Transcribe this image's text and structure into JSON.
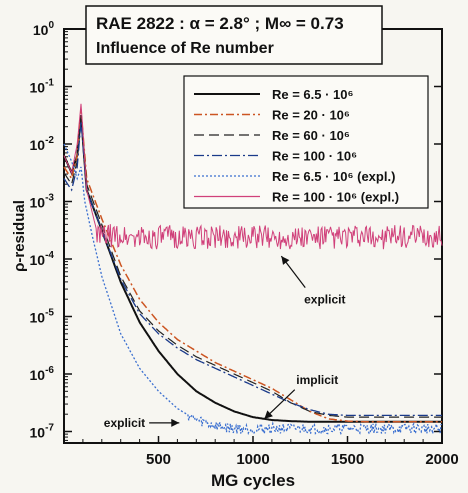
{
  "chart_data": {
    "type": "line",
    "title": "RAE 2822 : α = 2.8° ; M∞ = 0.73",
    "subtitle": "Influence of Re number",
    "xlabel": "MG cycles",
    "ylabel": "ρ-residual",
    "xlim": [
      0,
      2000
    ],
    "ylim_log10": [
      -7.2,
      0
    ],
    "yscale": "log",
    "x_ticks": [
      "500",
      "1000",
      "1500",
      "2000"
    ],
    "x_tick_values": [
      500,
      1000,
      1500,
      2000
    ],
    "y_ticks": [
      {
        "base": "10",
        "exp": "0",
        "value": 0
      },
      {
        "base": "10",
        "exp": "-1",
        "value": -1
      },
      {
        "base": "10",
        "exp": "-2",
        "value": -2
      },
      {
        "base": "10",
        "exp": "-3",
        "value": -3
      },
      {
        "base": "10",
        "exp": "-4",
        "value": -4
      },
      {
        "base": "10",
        "exp": "-5",
        "value": -5
      },
      {
        "base": "10",
        "exp": "-6",
        "value": -6
      },
      {
        "base": "10",
        "exp": "-7",
        "value": -7
      }
    ],
    "legend_position": "top-right",
    "series": [
      {
        "name": "Re = 6.5 · 10⁶",
        "color": "#111111",
        "dash": "",
        "width": 2,
        "x": [
          0,
          40,
          70,
          90,
          120,
          200,
          300,
          400,
          500,
          600,
          700,
          800,
          900,
          1000,
          1100,
          1200,
          1300,
          1500,
          1750,
          2000
        ],
        "y_log10": [
          -2.2,
          -2.5,
          -2.2,
          -1.5,
          -2.8,
          -3.5,
          -4.4,
          -5.1,
          -5.6,
          -6.0,
          -6.3,
          -6.5,
          -6.65,
          -6.75,
          -6.8,
          -6.82,
          -6.83,
          -6.83,
          -6.83,
          -6.83
        ]
      },
      {
        "name": "Re = 20 · 10⁶",
        "color": "#cc5522",
        "dash": "8,3,2,3",
        "width": 1.5,
        "x": [
          0,
          40,
          70,
          90,
          120,
          200,
          300,
          400,
          500,
          600,
          700,
          800,
          900,
          1000,
          1100,
          1200,
          1300,
          1400,
          1500,
          1600,
          1800,
          2000
        ],
        "y_log10": [
          -2.4,
          -2.6,
          -2.2,
          -1.4,
          -2.6,
          -3.3,
          -4.1,
          -4.7,
          -5.1,
          -5.4,
          -5.6,
          -5.8,
          -5.95,
          -6.1,
          -6.25,
          -6.45,
          -6.65,
          -6.78,
          -6.82,
          -6.83,
          -6.83,
          -6.83
        ]
      },
      {
        "name": "Re = 60 · 10⁶",
        "color": "#222222",
        "dash": "10,5",
        "width": 1.2,
        "x": [
          0,
          40,
          70,
          90,
          120,
          200,
          300,
          400,
          500,
          600,
          700,
          800,
          900,
          1000,
          1100,
          1200,
          1300,
          1400,
          1500,
          1600,
          1800,
          2000
        ],
        "y_log10": [
          -2.5,
          -2.7,
          -2.3,
          -1.5,
          -2.7,
          -3.4,
          -4.3,
          -4.9,
          -5.25,
          -5.5,
          -5.7,
          -5.85,
          -6.0,
          -6.15,
          -6.3,
          -6.5,
          -6.65,
          -6.72,
          -6.75,
          -6.75,
          -6.75,
          -6.75
        ]
      },
      {
        "name": "Re = 100 · 10⁶",
        "color": "#1a3a8a",
        "dash": "10,3,2,3",
        "width": 1.3,
        "x": [
          0,
          40,
          70,
          90,
          120,
          200,
          300,
          400,
          500,
          600,
          700,
          800,
          900,
          1000,
          1100,
          1200,
          1300,
          1400,
          1500,
          1600,
          1800,
          2000
        ],
        "y_log10": [
          -2.6,
          -2.8,
          -2.4,
          -1.6,
          -2.8,
          -3.5,
          -4.35,
          -4.95,
          -5.3,
          -5.55,
          -5.75,
          -5.9,
          -6.05,
          -6.2,
          -6.35,
          -6.5,
          -6.62,
          -6.7,
          -6.72,
          -6.72,
          -6.72,
          -6.72
        ]
      },
      {
        "name": "Re = 6.5 · 10⁶ (expl.)",
        "color": "#3a6fd0",
        "dash": "2,2",
        "width": 1.3,
        "x": [
          0,
          40,
          70,
          90,
          110,
          150,
          200,
          300,
          400,
          500,
          600,
          700,
          800,
          900,
          1000,
          1200,
          1400,
          1600,
          1800,
          2000
        ],
        "y_log10": [
          -2.0,
          -2.3,
          -2.6,
          -2.4,
          -3.0,
          -3.6,
          -4.3,
          -5.3,
          -5.9,
          -6.3,
          -6.6,
          -6.8,
          -6.9,
          -6.95,
          -6.95,
          -6.95,
          -6.95,
          -6.95,
          -6.95,
          -6.95
        ]
      },
      {
        "name": "Re = 100 · 10⁶ (expl.)",
        "color": "#d0407a",
        "dash": "",
        "width": 1,
        "x": [
          0,
          40,
          70,
          90,
          120,
          180,
          250,
          400,
          600,
          800,
          1000,
          1200,
          1400,
          1600,
          1800,
          2000
        ],
        "y_log10": [
          -2.2,
          -2.5,
          -2.0,
          -1.3,
          -2.8,
          -3.6,
          -3.6,
          -3.62,
          -3.62,
          -3.62,
          -3.62,
          -3.62,
          -3.62,
          -3.62,
          -3.62,
          -3.62
        ]
      }
    ],
    "annotations": [
      {
        "text": "explicit",
        "x": 1380,
        "y_log10": -4.7,
        "arrow_to_x": 1150,
        "arrow_to_y_log10": -3.95
      },
      {
        "text": "implicit",
        "x": 1340,
        "y_log10": -6.1,
        "arrow_to_x": 1060,
        "arrow_to_y_log10": -6.78
      },
      {
        "text": "explicit",
        "x": 320,
        "y_log10": -6.85,
        "arrow_to_x": 610,
        "arrow_to_y_log10": -6.85
      }
    ]
  }
}
